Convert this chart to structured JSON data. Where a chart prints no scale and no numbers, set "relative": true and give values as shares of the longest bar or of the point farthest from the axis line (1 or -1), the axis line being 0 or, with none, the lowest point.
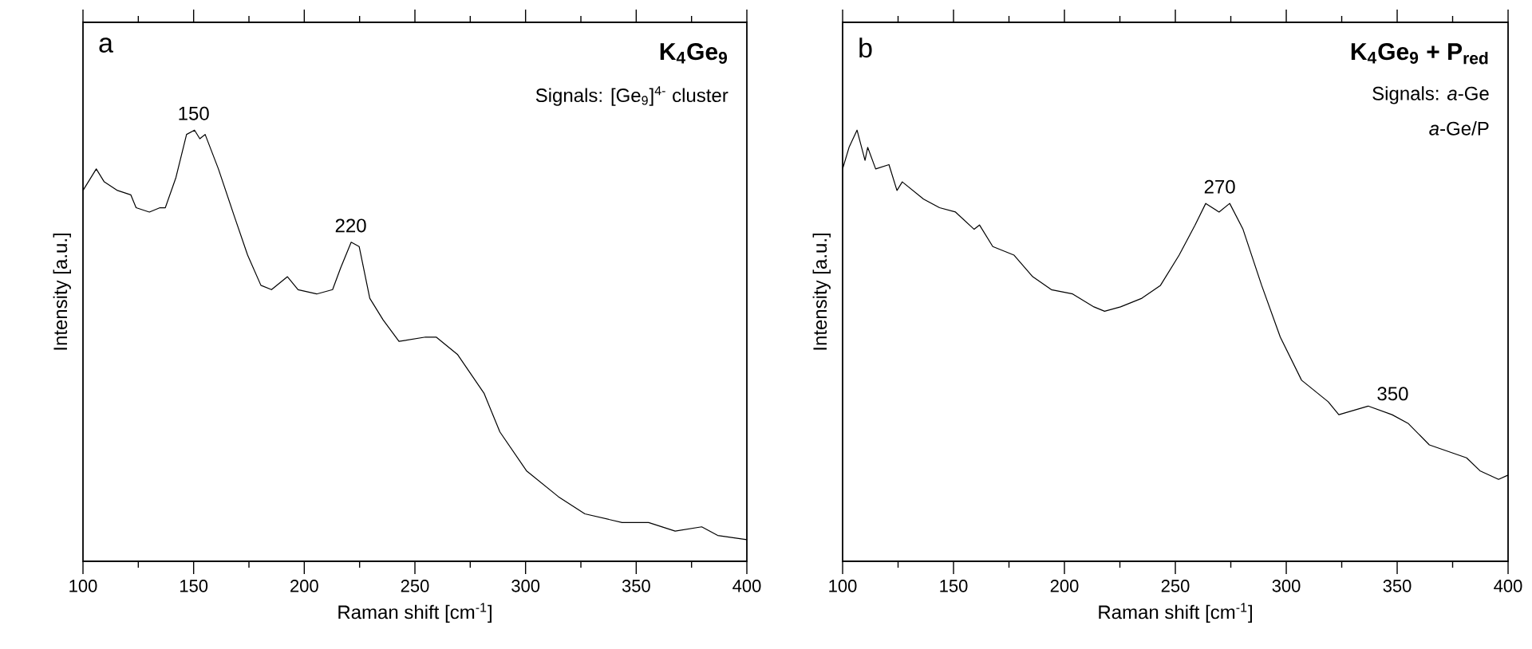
{
  "chart_data": [
    {
      "type": "line",
      "title": "K$_{4}$Ge$_{9}$",
      "xlabel": "Raman shift [cm$^{-1}$]",
      "ylabel": "Intensity [a.u.]",
      "relative": true,
      "tick_labels": "x",
      "xlim": [
        100,
        400
      ],
      "xticks": [
        100,
        150,
        200,
        250,
        300,
        350,
        400
      ],
      "annotations": [
        "a",
        "Signals: [Ge$_{9}$]$^{4-}$ cluster",
        {
          "text": "150",
          "x": 150,
          "y": 1.0
        },
        {
          "text": "220",
          "x": 221,
          "y": 0.74
        }
      ],
      "series": [
        {
          "color": "#000000",
          "x": [
            100,
            106,
            109.6,
            115.6,
            121.6,
            124,
            130,
            134.8,
            137.2,
            142,
            146.8,
            150.4,
            152.8,
            155.2,
            161.2,
            168.4,
            174.4,
            180.4,
            185.2,
            192.4,
            197.2,
            205.6,
            212.8,
            216.4,
            221.2,
            224.8,
            229.6,
            235.6,
            242.8,
            254.8,
            259.6,
            269.2,
            281.2,
            288.4,
            300.4,
            314.8,
            326.8,
            343.6,
            355.6,
            367.6,
            379.6,
            386.8,
            400
          ],
          "values": [
            0.86,
            0.91,
            0.88,
            0.86,
            0.85,
            0.82,
            0.81,
            0.82,
            0.82,
            0.89,
            0.99,
            1.0,
            0.98,
            0.99,
            0.91,
            0.8,
            0.71,
            0.64,
            0.63,
            0.66,
            0.63,
            0.62,
            0.63,
            0.68,
            0.74,
            0.73,
            0.61,
            0.56,
            0.51,
            0.52,
            0.52,
            0.48,
            0.39,
            0.3,
            0.21,
            0.15,
            0.11,
            0.09,
            0.09,
            0.07,
            0.08,
            0.06,
            0.05
          ]
        }
      ]
    },
    {
      "type": "line",
      "title": "K$_{4}$Ge$_{9}$ + P$_{red}$",
      "xlabel": "Raman shift [cm$^{-1}$]",
      "ylabel": "Intensity [a.u.]",
      "relative": true,
      "tick_labels": "x",
      "xlim": [
        100,
        400
      ],
      "xticks": [
        100,
        150,
        200,
        250,
        300,
        350,
        400
      ],
      "annotations": [
        "b",
        "Signals: *a*-Ge",
        "*a*-Ge/P",
        {
          "text": "270",
          "x": 270,
          "y": 0.83
        },
        {
          "text": "350",
          "x": 348,
          "y": 0.35
        }
      ],
      "series": [
        {
          "color": "#000000",
          "x": [
            100,
            102.9,
            106.5,
            110.1,
            111.3,
            114.9,
            120.9,
            124.5,
            126.9,
            136.5,
            143.7,
            150.9,
            159.3,
            161.7,
            167.7,
            177.3,
            185.7,
            194.1,
            203.7,
            213.3,
            218.1,
            225.3,
            234.9,
            243.3,
            251.7,
            258.9,
            263.7,
            269.7,
            274.5,
            280.5,
            288.9,
            297.3,
            306.9,
            318.9,
            323.7,
            336.9,
            347.7,
            354.9,
            364.5,
            381.3,
            387.3,
            395.7,
            400
          ],
          "values": [
            0.91,
            0.96,
            1.0,
            0.93,
            0.96,
            0.91,
            0.92,
            0.86,
            0.88,
            0.84,
            0.82,
            0.81,
            0.77,
            0.78,
            0.73,
            0.71,
            0.66,
            0.63,
            0.62,
            0.59,
            0.58,
            0.59,
            0.61,
            0.64,
            0.71,
            0.78,
            0.83,
            0.81,
            0.83,
            0.77,
            0.64,
            0.52,
            0.42,
            0.37,
            0.34,
            0.36,
            0.34,
            0.32,
            0.27,
            0.24,
            0.21,
            0.19,
            0.2
          ]
        }
      ]
    }
  ]
}
